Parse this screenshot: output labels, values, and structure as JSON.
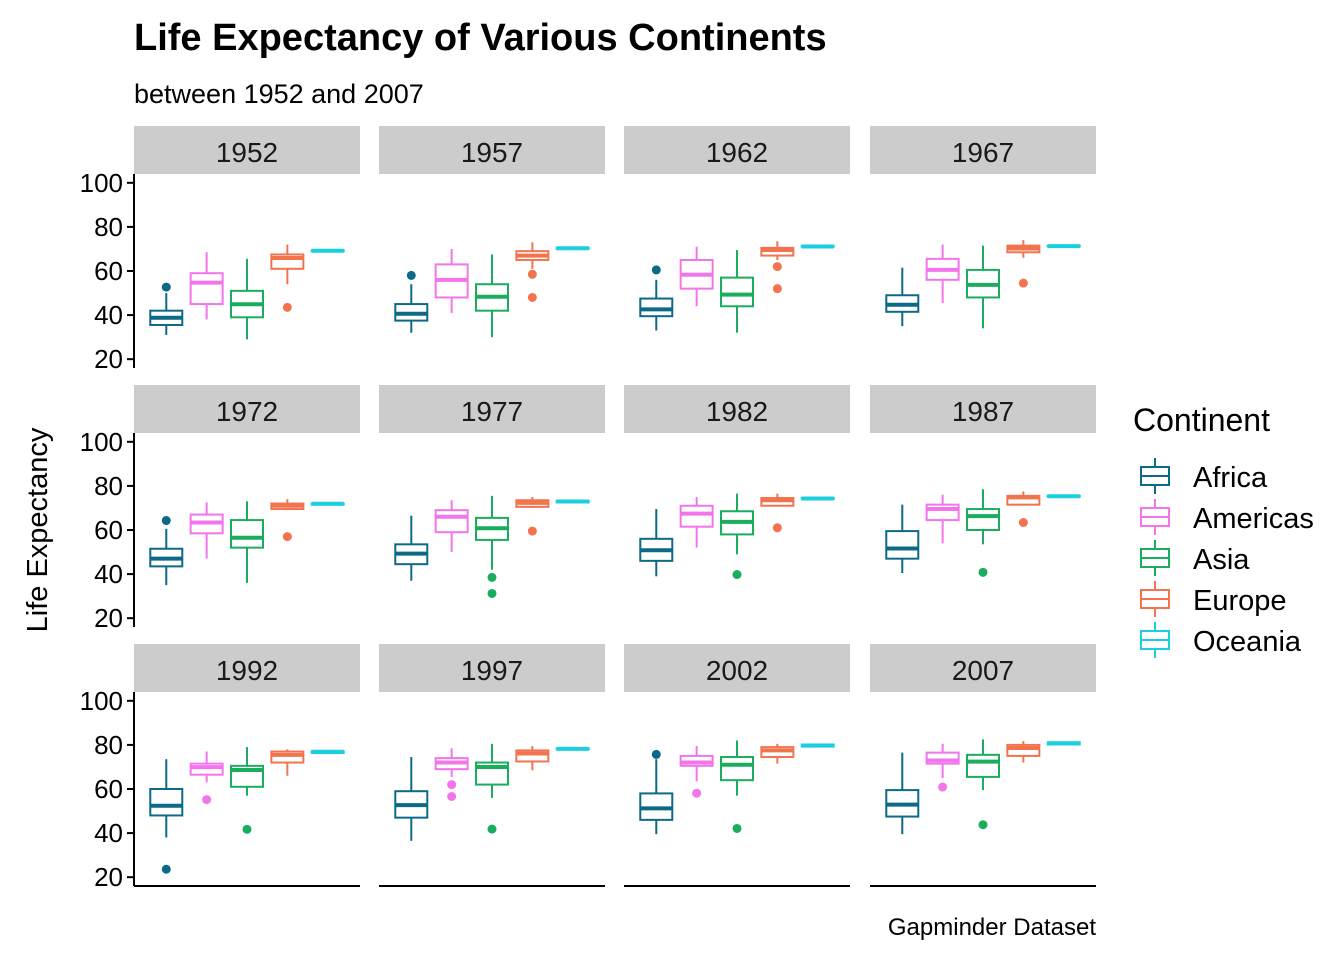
{
  "chart_data": {
    "type": "boxplot",
    "title": "Life Expectancy of Various Continents",
    "subtitle": "between 1952 and 2007",
    "ylabel": "Life Expectancy",
    "xlabel": "",
    "caption": "Gapminder Dataset",
    "ylim": [
      20,
      100
    ],
    "yticks": [
      20,
      40,
      60,
      80,
      100
    ],
    "legend": {
      "title": "Continent",
      "position": "right",
      "entries": [
        {
          "name": "Africa",
          "color": "#0c6a87"
        },
        {
          "name": "Americas",
          "color": "#f275eb"
        },
        {
          "name": "Asia",
          "color": "#1aad5e"
        },
        {
          "name": "Europe",
          "color": "#f2744e"
        },
        {
          "name": "Oceania",
          "color": "#1ccfe0"
        }
      ]
    },
    "continents": [
      "Africa",
      "Americas",
      "Asia",
      "Europe",
      "Oceania"
    ],
    "panels": [
      {
        "year": "1952",
        "boxes": [
          {
            "min": 31,
            "q1": 35.5,
            "median": 38.8,
            "q3": 42,
            "max": 50,
            "outliers": [
              52.7
            ]
          },
          {
            "min": 38,
            "q1": 45,
            "median": 54.7,
            "q3": 59,
            "max": 68.5,
            "outliers": []
          },
          {
            "min": 29,
            "q1": 39,
            "median": 44.9,
            "q3": 51,
            "max": 65.5,
            "outliers": []
          },
          {
            "min": 54,
            "q1": 61,
            "median": 65.9,
            "q3": 67.5,
            "max": 72,
            "outliers": [
              43.5
            ]
          },
          {
            "min": 69,
            "q1": 69,
            "median": 69.2,
            "q3": 69.4,
            "max": 69.4,
            "outliers": []
          }
        ]
      },
      {
        "year": "1957",
        "boxes": [
          {
            "min": 32,
            "q1": 37.5,
            "median": 40.6,
            "q3": 45,
            "max": 54,
            "outliers": [
              58
            ]
          },
          {
            "min": 41,
            "q1": 48,
            "median": 56,
            "q3": 63,
            "max": 70,
            "outliers": []
          },
          {
            "min": 30,
            "q1": 42,
            "median": 48.3,
            "q3": 54,
            "max": 67.5,
            "outliers": []
          },
          {
            "min": 61,
            "q1": 65,
            "median": 67,
            "q3": 69,
            "max": 73,
            "outliers": [
              58.5,
              48
            ]
          },
          {
            "min": 70,
            "q1": 70,
            "median": 70.3,
            "q3": 70.6,
            "max": 70.6,
            "outliers": []
          }
        ]
      },
      {
        "year": "1962",
        "boxes": [
          {
            "min": 33,
            "q1": 39.5,
            "median": 42.6,
            "q3": 47.5,
            "max": 56,
            "outliers": [
              60.5
            ]
          },
          {
            "min": 44,
            "q1": 52,
            "median": 58.3,
            "q3": 65,
            "max": 71,
            "outliers": []
          },
          {
            "min": 32,
            "q1": 44,
            "median": 49.3,
            "q3": 57,
            "max": 69.5,
            "outliers": []
          },
          {
            "min": 65,
            "q1": 67,
            "median": 69.5,
            "q3": 70.5,
            "max": 73.5,
            "outliers": [
              62,
              52
            ]
          },
          {
            "min": 71,
            "q1": 71,
            "median": 71.1,
            "q3": 71.3,
            "max": 71.3,
            "outliers": []
          }
        ]
      },
      {
        "year": "1967",
        "boxes": [
          {
            "min": 35,
            "q1": 41.5,
            "median": 44.7,
            "q3": 49,
            "max": 61.5,
            "outliers": []
          },
          {
            "min": 45.5,
            "q1": 56,
            "median": 60.5,
            "q3": 65.5,
            "max": 72,
            "outliers": []
          },
          {
            "min": 34,
            "q1": 48,
            "median": 53.7,
            "q3": 60.5,
            "max": 71.5,
            "outliers": []
          },
          {
            "min": 66,
            "q1": 68.5,
            "median": 70.2,
            "q3": 71.5,
            "max": 74,
            "outliers": [
              54.5
            ]
          },
          {
            "min": 71,
            "q1": 71.1,
            "median": 71.3,
            "q3": 71.5,
            "max": 71.5,
            "outliers": []
          }
        ]
      },
      {
        "year": "1972",
        "boxes": [
          {
            "min": 35,
            "q1": 43.5,
            "median": 47,
            "q3": 51.5,
            "max": 60.5,
            "outliers": [
              64.3
            ]
          },
          {
            "min": 47,
            "q1": 58.5,
            "median": 63.4,
            "q3": 67,
            "max": 72.5,
            "outliers": []
          },
          {
            "min": 36,
            "q1": 52,
            "median": 56.5,
            "q3": 64.5,
            "max": 73,
            "outliers": []
          },
          {
            "min": 69,
            "q1": 69.5,
            "median": 71,
            "q3": 72,
            "max": 74,
            "outliers": [
              57
            ]
          },
          {
            "min": 71.5,
            "q1": 71.5,
            "median": 71.9,
            "q3": 72,
            "max": 72,
            "outliers": []
          }
        ]
      },
      {
        "year": "1977",
        "boxes": [
          {
            "min": 37,
            "q1": 44.5,
            "median": 49.3,
            "q3": 53.5,
            "max": 66.5,
            "outliers": []
          },
          {
            "min": 50,
            "q1": 59,
            "median": 66,
            "q3": 69,
            "max": 73.5,
            "outliers": []
          },
          {
            "min": 42,
            "q1": 55.5,
            "median": 60.8,
            "q3": 65.5,
            "max": 75.5,
            "outliers": [
              38.5,
              31.2
            ]
          },
          {
            "min": 70,
            "q1": 70.5,
            "median": 72.3,
            "q3": 73.5,
            "max": 75,
            "outliers": [
              59.5
            ]
          },
          {
            "min": 72.5,
            "q1": 72.5,
            "median": 72.9,
            "q3": 73.3,
            "max": 73.3,
            "outliers": []
          }
        ]
      },
      {
        "year": "1982",
        "boxes": [
          {
            "min": 39,
            "q1": 46,
            "median": 50.8,
            "q3": 56,
            "max": 69.5,
            "outliers": []
          },
          {
            "min": 52,
            "q1": 61.5,
            "median": 67.4,
            "q3": 71,
            "max": 75,
            "outliers": []
          },
          {
            "min": 49,
            "q1": 58,
            "median": 63.7,
            "q3": 68.5,
            "max": 76.5,
            "outliers": [
              39.8
            ]
          },
          {
            "min": 71,
            "q1": 71,
            "median": 73.5,
            "q3": 74.5,
            "max": 76.5,
            "outliers": [
              61
            ]
          },
          {
            "min": 74,
            "q1": 74,
            "median": 74.3,
            "q3": 74.6,
            "max": 74.6,
            "outliers": []
          }
        ]
      },
      {
        "year": "1987",
        "boxes": [
          {
            "min": 40.5,
            "q1": 47,
            "median": 51.6,
            "q3": 59.5,
            "max": 71.5,
            "outliers": []
          },
          {
            "min": 54,
            "q1": 64.5,
            "median": 69.5,
            "q3": 71.5,
            "max": 76,
            "outliers": []
          },
          {
            "min": 53.5,
            "q1": 60,
            "median": 66.3,
            "q3": 69.5,
            "max": 78.5,
            "outliers": [
              40.8
            ]
          },
          {
            "min": 71.5,
            "q1": 71.5,
            "median": 74.8,
            "q3": 75.5,
            "max": 77.5,
            "outliers": [
              63.4
            ]
          },
          {
            "min": 75,
            "q1": 75,
            "median": 75.3,
            "q3": 75.6,
            "max": 75.6,
            "outliers": []
          }
        ]
      },
      {
        "year": "1992",
        "boxes": [
          {
            "min": 38,
            "q1": 48,
            "median": 52.4,
            "q3": 60,
            "max": 73.5,
            "outliers": [
              23.6
            ]
          },
          {
            "min": 63,
            "q1": 66.5,
            "median": 69.9,
            "q3": 71.5,
            "max": 77,
            "outliers": [
              55.2
            ]
          },
          {
            "min": 57,
            "q1": 61,
            "median": 68.6,
            "q3": 70.5,
            "max": 79,
            "outliers": [
              41.7
            ]
          },
          {
            "min": 66,
            "q1": 72,
            "median": 75.5,
            "q3": 77,
            "max": 78,
            "outliers": []
          },
          {
            "min": 76.3,
            "q1": 76.3,
            "median": 76.9,
            "q3": 77.1,
            "max": 77.1,
            "outliers": []
          }
        ]
      },
      {
        "year": "1997",
        "boxes": [
          {
            "min": 36.5,
            "q1": 47,
            "median": 52.7,
            "q3": 59,
            "max": 74.5,
            "outliers": []
          },
          {
            "min": 65.5,
            "q1": 69,
            "median": 72,
            "q3": 74,
            "max": 78.5,
            "outliers": [
              62,
              56.6
            ]
          },
          {
            "min": 56,
            "q1": 62,
            "median": 70,
            "q3": 72,
            "max": 80.5,
            "outliers": [
              41.8
            ]
          },
          {
            "min": 68.5,
            "q1": 72.5,
            "median": 76.1,
            "q3": 77.5,
            "max": 79.5,
            "outliers": []
          },
          {
            "min": 77.5,
            "q1": 78,
            "median": 78.2,
            "q3": 78.5,
            "max": 78.5,
            "outliers": []
          }
        ]
      },
      {
        "year": "2002",
        "boxes": [
          {
            "min": 39.5,
            "q1": 46,
            "median": 51.2,
            "q3": 58,
            "max": 73.5,
            "outliers": [
              75.7
            ]
          },
          {
            "min": 63.5,
            "q1": 70.5,
            "median": 72,
            "q3": 75,
            "max": 79.5,
            "outliers": [
              58.1
            ]
          },
          {
            "min": 57,
            "q1": 64,
            "median": 71,
            "q3": 74.5,
            "max": 82,
            "outliers": [
              42.1
            ]
          },
          {
            "min": 71.5,
            "q1": 74.5,
            "median": 77.5,
            "q3": 79,
            "max": 80.5,
            "outliers": []
          },
          {
            "min": 79,
            "q1": 79.3,
            "median": 79.7,
            "q3": 80.2,
            "max": 80.2,
            "outliers": []
          }
        ]
      },
      {
        "year": "2007",
        "boxes": [
          {
            "min": 39.5,
            "q1": 47.5,
            "median": 52.9,
            "q3": 59.5,
            "max": 76.5,
            "outliers": []
          },
          {
            "min": 65,
            "q1": 71.5,
            "median": 72.9,
            "q3": 76.5,
            "max": 80.5,
            "outliers": [
              60.9
            ]
          },
          {
            "min": 59.5,
            "q1": 65.5,
            "median": 72.4,
            "q3": 75.5,
            "max": 82.5,
            "outliers": [
              43.8
            ]
          },
          {
            "min": 72,
            "q1": 75,
            "median": 78.6,
            "q3": 80,
            "max": 81.7,
            "outliers": []
          },
          {
            "min": 80.2,
            "q1": 80.2,
            "median": 80.7,
            "q3": 81.2,
            "max": 81.2,
            "outliers": []
          }
        ]
      }
    ]
  }
}
